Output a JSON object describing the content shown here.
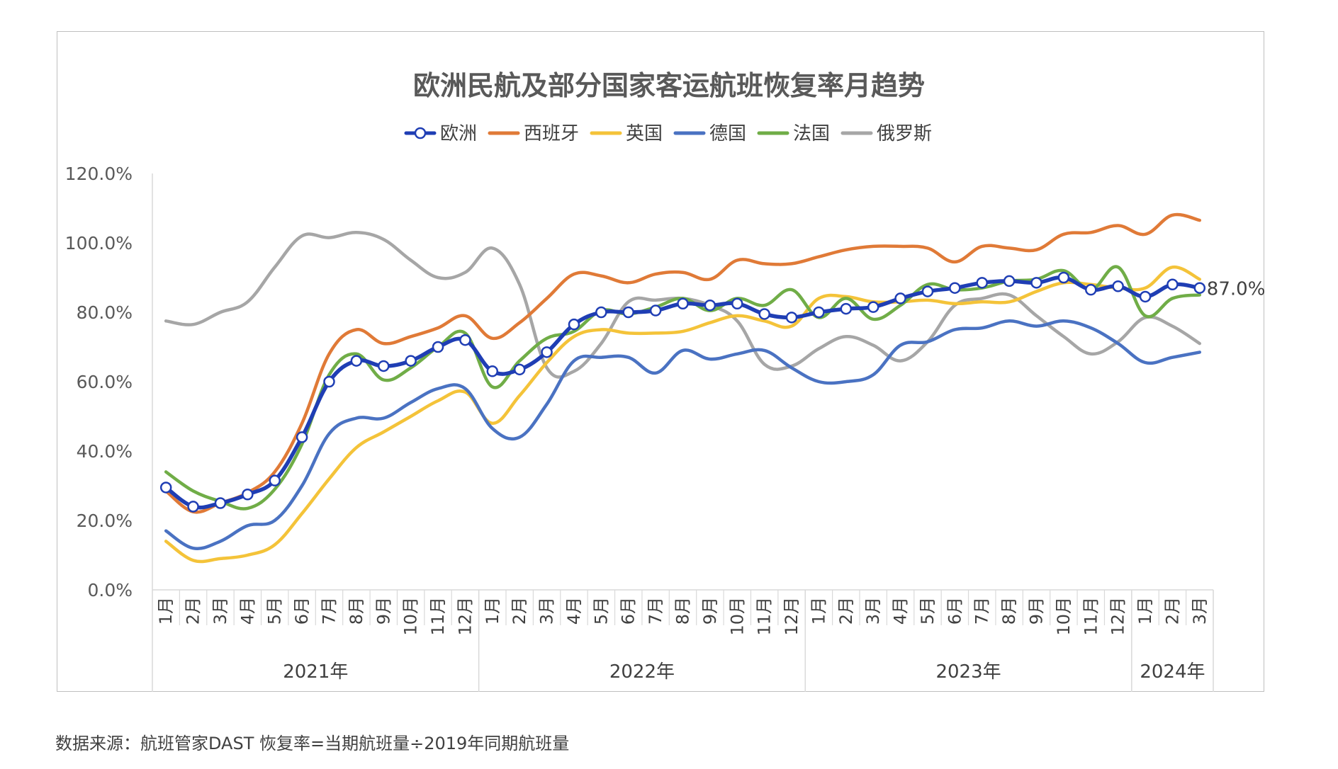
{
  "title": "欧洲民航及部分国家客运航班恢复率月趋势",
  "source_note": "数据来源：航班管家DAST 恢复率=当期航班量÷2019年同期航班量",
  "chart_data": {
    "type": "line",
    "title": "欧洲民航及部分国家客运航班恢复率月趋势",
    "ylim": [
      0,
      120
    ],
    "y_ticks": [
      "0.0%",
      "20.0%",
      "40.0%",
      "60.0%",
      "80.0%",
      "100.0%",
      "120.0%"
    ],
    "legend_position": "top",
    "categories": [
      "1月",
      "2月",
      "3月",
      "4月",
      "5月",
      "6月",
      "7月",
      "8月",
      "9月",
      "10月",
      "11月",
      "12月",
      "1月",
      "2月",
      "3月",
      "4月",
      "5月",
      "6月",
      "7月",
      "8月",
      "9月",
      "10月",
      "11月",
      "12月",
      "1月",
      "2月",
      "3月",
      "4月",
      "5月",
      "6月",
      "7月",
      "8月",
      "9月",
      "10月",
      "11月",
      "12月",
      "1月",
      "2月",
      "3月"
    ],
    "years": [
      {
        "label": "2021年",
        "count": 12
      },
      {
        "label": "2022年",
        "count": 12
      },
      {
        "label": "2023年",
        "count": 12
      },
      {
        "label": "2024年",
        "count": 3
      }
    ],
    "annotation": "87.0%",
    "series": [
      {
        "name": "欧洲",
        "color": "#1f3eb4",
        "markers": true,
        "values": [
          29.5,
          24,
          25,
          27.5,
          31.5,
          44,
          60,
          66,
          64.5,
          66,
          70,
          72,
          63,
          63.5,
          68.5,
          76.5,
          80,
          80,
          80.5,
          82.5,
          82,
          82.5,
          79.5,
          78.5,
          80,
          81,
          81.5,
          84,
          86,
          87,
          88.5,
          89,
          88.5,
          90,
          86.5,
          87.5,
          84.5,
          88,
          87
        ]
      },
      {
        "name": "西班牙",
        "color": "#e07a37",
        "values": [
          28.5,
          22.5,
          25,
          28,
          34,
          48,
          68,
          75,
          71,
          73,
          75.5,
          79,
          72.5,
          77,
          84,
          91,
          90.5,
          88.5,
          91,
          91.5,
          89.5,
          95,
          94,
          94,
          96,
          98,
          99,
          99,
          98.5,
          94.5,
          99,
          98.5,
          98,
          102.5,
          103,
          105,
          102.5,
          108,
          106.5
        ]
      },
      {
        "name": "英国",
        "color": "#f4c339",
        "values": [
          14,
          8.5,
          9,
          10,
          13,
          22,
          32,
          41,
          45.5,
          50,
          54.5,
          57,
          48,
          56,
          65.5,
          73,
          75,
          74,
          74,
          74.5,
          77,
          79,
          77.5,
          76,
          84,
          84.5,
          83,
          83,
          83.5,
          82.5,
          83,
          83,
          86,
          88.5,
          88,
          87,
          87,
          93,
          89.5
        ]
      },
      {
        "name": "德国",
        "color": "#4a72c2",
        "values": [
          17,
          12,
          14,
          18.5,
          20,
          30,
          45,
          49.5,
          49.5,
          54,
          58,
          58,
          46.5,
          44,
          53.5,
          66,
          67,
          67,
          62.5,
          69,
          66.5,
          68,
          69,
          64,
          60,
          60,
          62,
          70.5,
          71.5,
          75,
          75.5,
          77.5,
          76,
          77.5,
          75.5,
          71,
          65.5,
          67,
          68.5
        ]
      },
      {
        "name": "法国",
        "color": "#70ad47",
        "values": [
          34,
          28.5,
          25.5,
          23.5,
          29,
          42,
          62,
          68,
          60.5,
          64,
          70,
          74,
          58.5,
          66,
          72.5,
          74.5,
          80.5,
          79.5,
          81.5,
          84,
          80.5,
          84,
          82,
          86.5,
          78.5,
          84,
          78,
          82,
          88,
          86.5,
          87,
          89,
          89.5,
          92,
          86.5,
          93,
          79,
          84,
          85
        ]
      },
      {
        "name": "俄罗斯",
        "color": "#a6a6a6",
        "values": [
          77.5,
          76.5,
          80,
          83,
          93,
          102,
          101.5,
          103,
          101,
          95,
          90,
          91.5,
          98.5,
          88,
          64,
          63,
          71,
          83,
          83.5,
          84,
          82,
          77.5,
          65,
          64.5,
          69.5,
          73,
          70.5,
          66,
          71.5,
          82,
          84,
          85,
          79,
          73,
          68,
          71.5,
          78.5,
          76,
          71
        ]
      }
    ]
  }
}
